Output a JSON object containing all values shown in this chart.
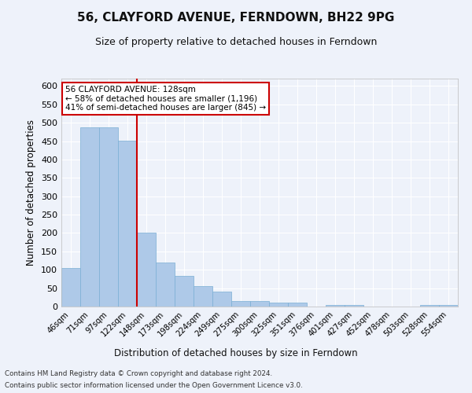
{
  "title": "56, CLAYFORD AVENUE, FERNDOWN, BH22 9PG",
  "subtitle": "Size of property relative to detached houses in Ferndown",
  "xlabel": "Distribution of detached houses by size in Ferndown",
  "ylabel": "Number of detached properties",
  "categories": [
    "46sqm",
    "71sqm",
    "97sqm",
    "122sqm",
    "148sqm",
    "173sqm",
    "198sqm",
    "224sqm",
    "249sqm",
    "275sqm",
    "300sqm",
    "325sqm",
    "351sqm",
    "376sqm",
    "401sqm",
    "427sqm",
    "452sqm",
    "478sqm",
    "503sqm",
    "528sqm",
    "554sqm"
  ],
  "values": [
    105,
    487,
    487,
    452,
    202,
    120,
    84,
    55,
    40,
    15,
    16,
    10,
    10,
    0,
    5,
    5,
    0,
    0,
    0,
    5,
    5
  ],
  "bar_color": "#aec9e8",
  "bar_edgecolor": "#7aafd4",
  "bar_width": 1.0,
  "vline_color": "#cc0000",
  "vline_x_index": 3,
  "annotation_line1": "56 CLAYFORD AVENUE: 128sqm",
  "annotation_line2": "← 58% of detached houses are smaller (1,196)",
  "annotation_line3": "41% of semi-detached houses are larger (845) →",
  "annotation_box_color": "#cc0000",
  "ylim": [
    0,
    620
  ],
  "yticks": [
    0,
    50,
    100,
    150,
    200,
    250,
    300,
    350,
    400,
    450,
    500,
    550,
    600
  ],
  "footer_line1": "Contains HM Land Registry data © Crown copyright and database right 2024.",
  "footer_line2": "Contains public sector information licensed under the Open Government Licence v3.0.",
  "background_color": "#eef2fa",
  "grid_color": "#ffffff",
  "title_fontsize": 11,
  "subtitle_fontsize": 9
}
